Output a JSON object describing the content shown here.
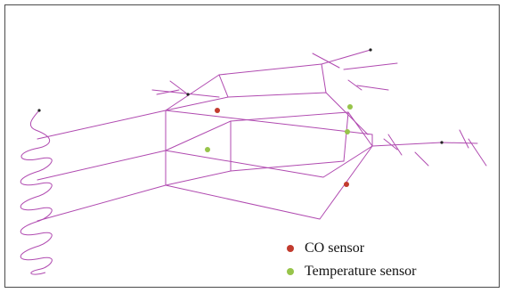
{
  "colors": {
    "network": "#b04ab0",
    "co_sensor": "#c23b2e",
    "temperature_sensor": "#97c44a",
    "terminal": "#222222"
  },
  "legend": {
    "co_sensor_label": "CO sensor",
    "temperature_sensor_label": "Temperature sensor"
  },
  "sensors": {
    "co": [
      "co-1",
      "co-2"
    ],
    "temperature": [
      "temp-1",
      "temp-2",
      "temp-3"
    ]
  }
}
